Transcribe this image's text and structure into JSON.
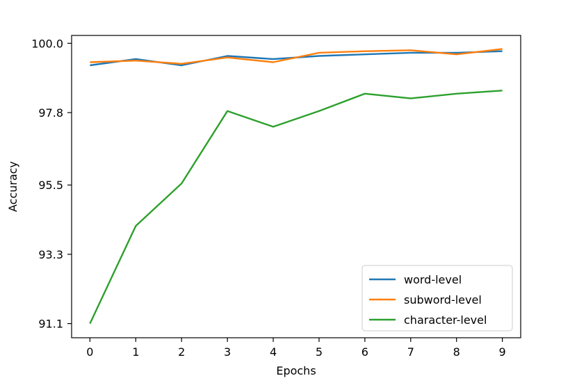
{
  "chart_data": {
    "type": "line",
    "xlabel": "Epochs",
    "ylabel": "Accuracy",
    "x": [
      0,
      1,
      2,
      3,
      4,
      5,
      6,
      7,
      8,
      9
    ],
    "xticks": [
      "0",
      "1",
      "2",
      "3",
      "4",
      "5",
      "6",
      "7",
      "8",
      "9"
    ],
    "yticks": [
      "91.1",
      "93.3",
      "95.5",
      "97.8",
      "100.0"
    ],
    "ytick_values": [
      91.1,
      93.3,
      95.5,
      97.8,
      100.0
    ],
    "xlim": [
      -0.4,
      9.4
    ],
    "ylim": [
      90.65,
      100.25
    ],
    "grid": false,
    "legend_position": "lower-right",
    "series": [
      {
        "name": "word-level",
        "color": "#1f77b4",
        "values": [
          99.3,
          99.5,
          99.3,
          99.6,
          99.5,
          99.6,
          99.65,
          99.7,
          99.7,
          99.75
        ]
      },
      {
        "name": "subword-level",
        "color": "#ff7f0e",
        "values": [
          99.4,
          99.45,
          99.35,
          99.55,
          99.4,
          99.7,
          99.75,
          99.78,
          99.65,
          99.82
        ]
      },
      {
        "name": "character-level",
        "color": "#2ca02c",
        "values": [
          91.1,
          94.2,
          95.55,
          97.85,
          97.35,
          97.85,
          98.4,
          98.25,
          98.4,
          98.5
        ]
      }
    ]
  }
}
